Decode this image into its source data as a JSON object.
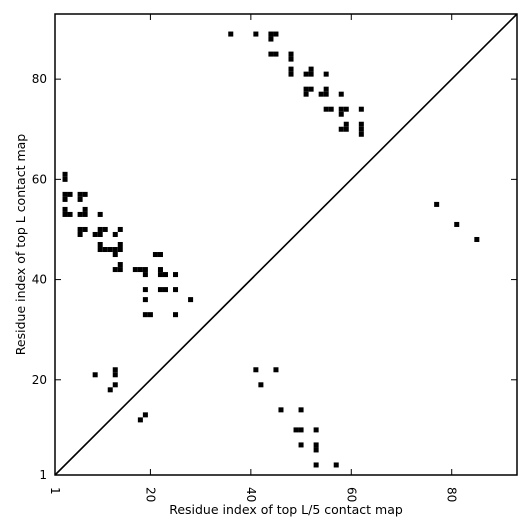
{
  "chart_data": {
    "type": "heatmap",
    "xlabel": "Residue index of top L/5 contact map",
    "ylabel": "Residue index of top L contact map",
    "xlim": [
      1,
      93
    ],
    "ylim": [
      1,
      93
    ],
    "x_ticks": [
      1,
      20,
      40,
      60,
      80
    ],
    "y_ticks": [
      1,
      20,
      40,
      60,
      80
    ],
    "diagonal": true,
    "marker_color": "#000000",
    "upper_points": [
      [
        36,
        89
      ],
      [
        41,
        89
      ],
      [
        44,
        89
      ],
      [
        44,
        88
      ],
      [
        45,
        89
      ],
      [
        44,
        85
      ],
      [
        45,
        85
      ],
      [
        48,
        85
      ],
      [
        48,
        84
      ],
      [
        48,
        82
      ],
      [
        48,
        81
      ],
      [
        51,
        81
      ],
      [
        52,
        81
      ],
      [
        52,
        82
      ],
      [
        55,
        81
      ],
      [
        51,
        78
      ],
      [
        51,
        77
      ],
      [
        52,
        78
      ],
      [
        54,
        77
      ],
      [
        55,
        77
      ],
      [
        55,
        78
      ],
      [
        58,
        77
      ],
      [
        55,
        74
      ],
      [
        56,
        74
      ],
      [
        58,
        74
      ],
      [
        58,
        73
      ],
      [
        59,
        74
      ],
      [
        62,
        74
      ],
      [
        58,
        70
      ],
      [
        59,
        70
      ],
      [
        59,
        71
      ],
      [
        62,
        71
      ],
      [
        62,
        70
      ],
      [
        62,
        69
      ],
      [
        3,
        61
      ],
      [
        3,
        60
      ],
      [
        3,
        57
      ],
      [
        4,
        57
      ],
      [
        3,
        56
      ],
      [
        6,
        57
      ],
      [
        7,
        57
      ],
      [
        6,
        56
      ],
      [
        3,
        54
      ],
      [
        3,
        53
      ],
      [
        4,
        53
      ],
      [
        6,
        53
      ],
      [
        7,
        53
      ],
      [
        7,
        54
      ],
      [
        6,
        50
      ],
      [
        6,
        49
      ],
      [
        7,
        50
      ],
      [
        9,
        49
      ],
      [
        10,
        49
      ],
      [
        10,
        50
      ],
      [
        11,
        50
      ],
      [
        10,
        53
      ],
      [
        13,
        49
      ],
      [
        14,
        50
      ],
      [
        10,
        47
      ],
      [
        10,
        46
      ],
      [
        11,
        46
      ],
      [
        12,
        46
      ],
      [
        13,
        46
      ],
      [
        13,
        45
      ],
      [
        14,
        46
      ],
      [
        14,
        47
      ],
      [
        13,
        42
      ],
      [
        14,
        42
      ],
      [
        14,
        43
      ],
      [
        17,
        42
      ],
      [
        18,
        42
      ],
      [
        19,
        42
      ],
      [
        19,
        41
      ],
      [
        21,
        45
      ],
      [
        22,
        45
      ],
      [
        22,
        42
      ],
      [
        22,
        41
      ],
      [
        23,
        41
      ],
      [
        25,
        41
      ],
      [
        19,
        38
      ],
      [
        22,
        38
      ],
      [
        23,
        38
      ],
      [
        25,
        38
      ],
      [
        28,
        36
      ],
      [
        19,
        36
      ],
      [
        19,
        33
      ],
      [
        20,
        33
      ],
      [
        25,
        33
      ],
      [
        77,
        55
      ],
      [
        81,
        51
      ],
      [
        85,
        48
      ]
    ],
    "lower_points": [
      [
        9,
        21
      ],
      [
        13,
        22
      ],
      [
        13,
        21
      ],
      [
        13,
        19
      ],
      [
        12,
        18
      ],
      [
        19,
        13
      ],
      [
        18,
        12
      ],
      [
        41,
        22
      ],
      [
        45,
        22
      ],
      [
        42,
        19
      ],
      [
        46,
        14
      ],
      [
        50,
        14
      ],
      [
        49,
        10
      ],
      [
        50,
        10
      ],
      [
        53,
        10
      ],
      [
        50,
        7
      ],
      [
        53,
        7
      ],
      [
        53,
        6
      ],
      [
        53,
        3
      ],
      [
        57,
        3
      ]
    ]
  }
}
